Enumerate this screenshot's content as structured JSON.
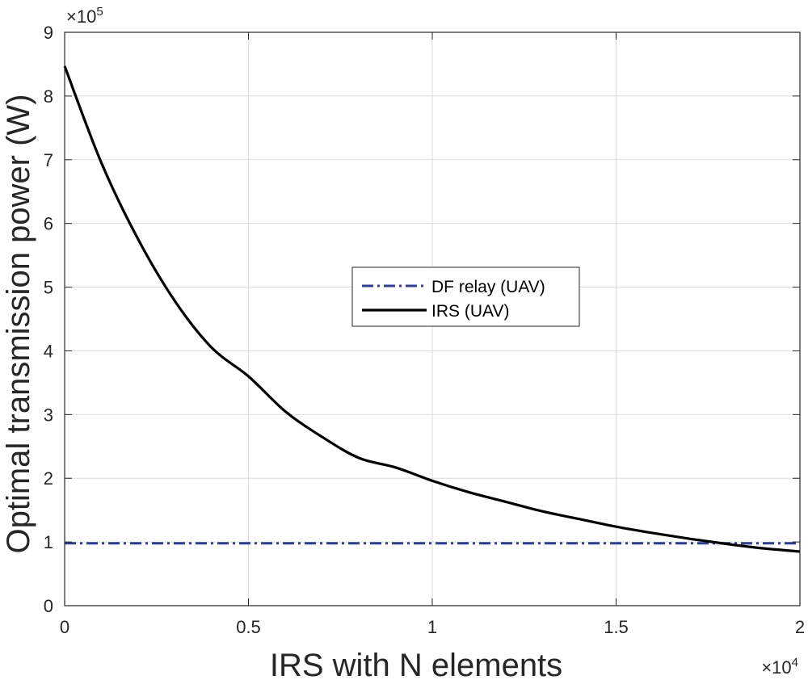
{
  "chart_data": {
    "type": "line",
    "xlabel": "IRS with N elements",
    "ylabel": "Optimal transmission power (W)",
    "x_multiplier_label": "×10",
    "x_multiplier_exp": "4",
    "y_multiplier_label": "×10",
    "y_multiplier_exp": "5",
    "xlim": [
      0,
      2
    ],
    "ylim": [
      0,
      9
    ],
    "x_ticks": [
      0,
      0.5,
      1,
      1.5,
      2
    ],
    "x_tick_labels": [
      "0",
      "0.5",
      "1",
      "1.5",
      "2"
    ],
    "y_ticks": [
      0,
      1,
      2,
      3,
      4,
      5,
      6,
      7,
      8,
      9
    ],
    "y_tick_labels": [
      "0",
      "1",
      "2",
      "3",
      "4",
      "5",
      "6",
      "7",
      "8",
      "9"
    ],
    "grid": true,
    "legend_position": "center",
    "series": [
      {
        "name": "DF relay (UAV)",
        "color": "#2f3f8f",
        "style": "dash-dot",
        "x": [
          0,
          2
        ],
        "y": [
          0.98,
          0.98
        ]
      },
      {
        "name": "IRS (UAV)",
        "color": "#000000",
        "style": "solid",
        "x": [
          0,
          0.1,
          0.2,
          0.3,
          0.4,
          0.5,
          0.6,
          0.7,
          0.8,
          0.9,
          1.0,
          1.1,
          1.2,
          1.3,
          1.4,
          1.5,
          1.6,
          1.7,
          1.8,
          1.9,
          2.0
        ],
        "y": [
          8.47,
          6.95,
          5.75,
          4.78,
          4.05,
          3.6,
          3.05,
          2.65,
          2.32,
          2.17,
          1.96,
          1.78,
          1.63,
          1.48,
          1.36,
          1.24,
          1.14,
          1.05,
          0.97,
          0.9,
          0.85
        ]
      }
    ]
  }
}
